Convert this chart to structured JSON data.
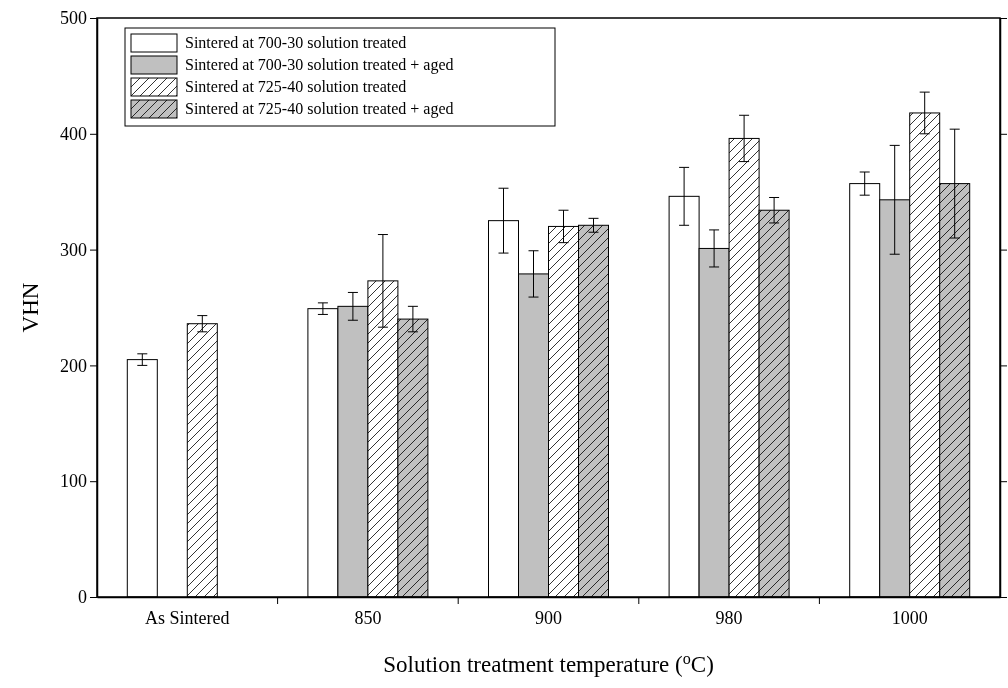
{
  "chart_data": {
    "type": "bar",
    "xlabel": "Solution treatment temperature ($^{o}$C)",
    "ylabel": "VHN",
    "categories": [
      "As Sintered",
      "850",
      "900",
      "980",
      "1000"
    ],
    "ylim": [
      0,
      500
    ],
    "yticks": [
      0,
      100,
      200,
      300,
      400,
      500
    ],
    "grid": false,
    "legend": "top left",
    "series": [
      {
        "name": "Sintered at 700-30 solution treated",
        "color": "#ffffff",
        "values": [
          205,
          249,
          325,
          346,
          357
        ],
        "errors": [
          5,
          5,
          28,
          25,
          10
        ]
      },
      {
        "name": "Sintered at 700-30 solution treated + aged",
        "color": "#c0c0c0",
        "values": [
          null,
          251,
          279,
          301,
          343
        ],
        "errors": [
          null,
          12,
          20,
          16,
          47
        ]
      },
      {
        "name": "Sintered at 725-40 solution treated",
        "color": "#ffffff",
        "values": [
          236,
          273,
          320,
          396,
          418
        ],
        "errors": [
          7,
          40,
          14,
          20,
          18
        ]
      },
      {
        "name": "Sintered at 725-40 solution treated + aged",
        "color": "#c0c0c0",
        "values": [
          null,
          240,
          321,
          334,
          357
        ],
        "errors": [
          null,
          11,
          6,
          11,
          47
        ]
      }
    ]
  }
}
